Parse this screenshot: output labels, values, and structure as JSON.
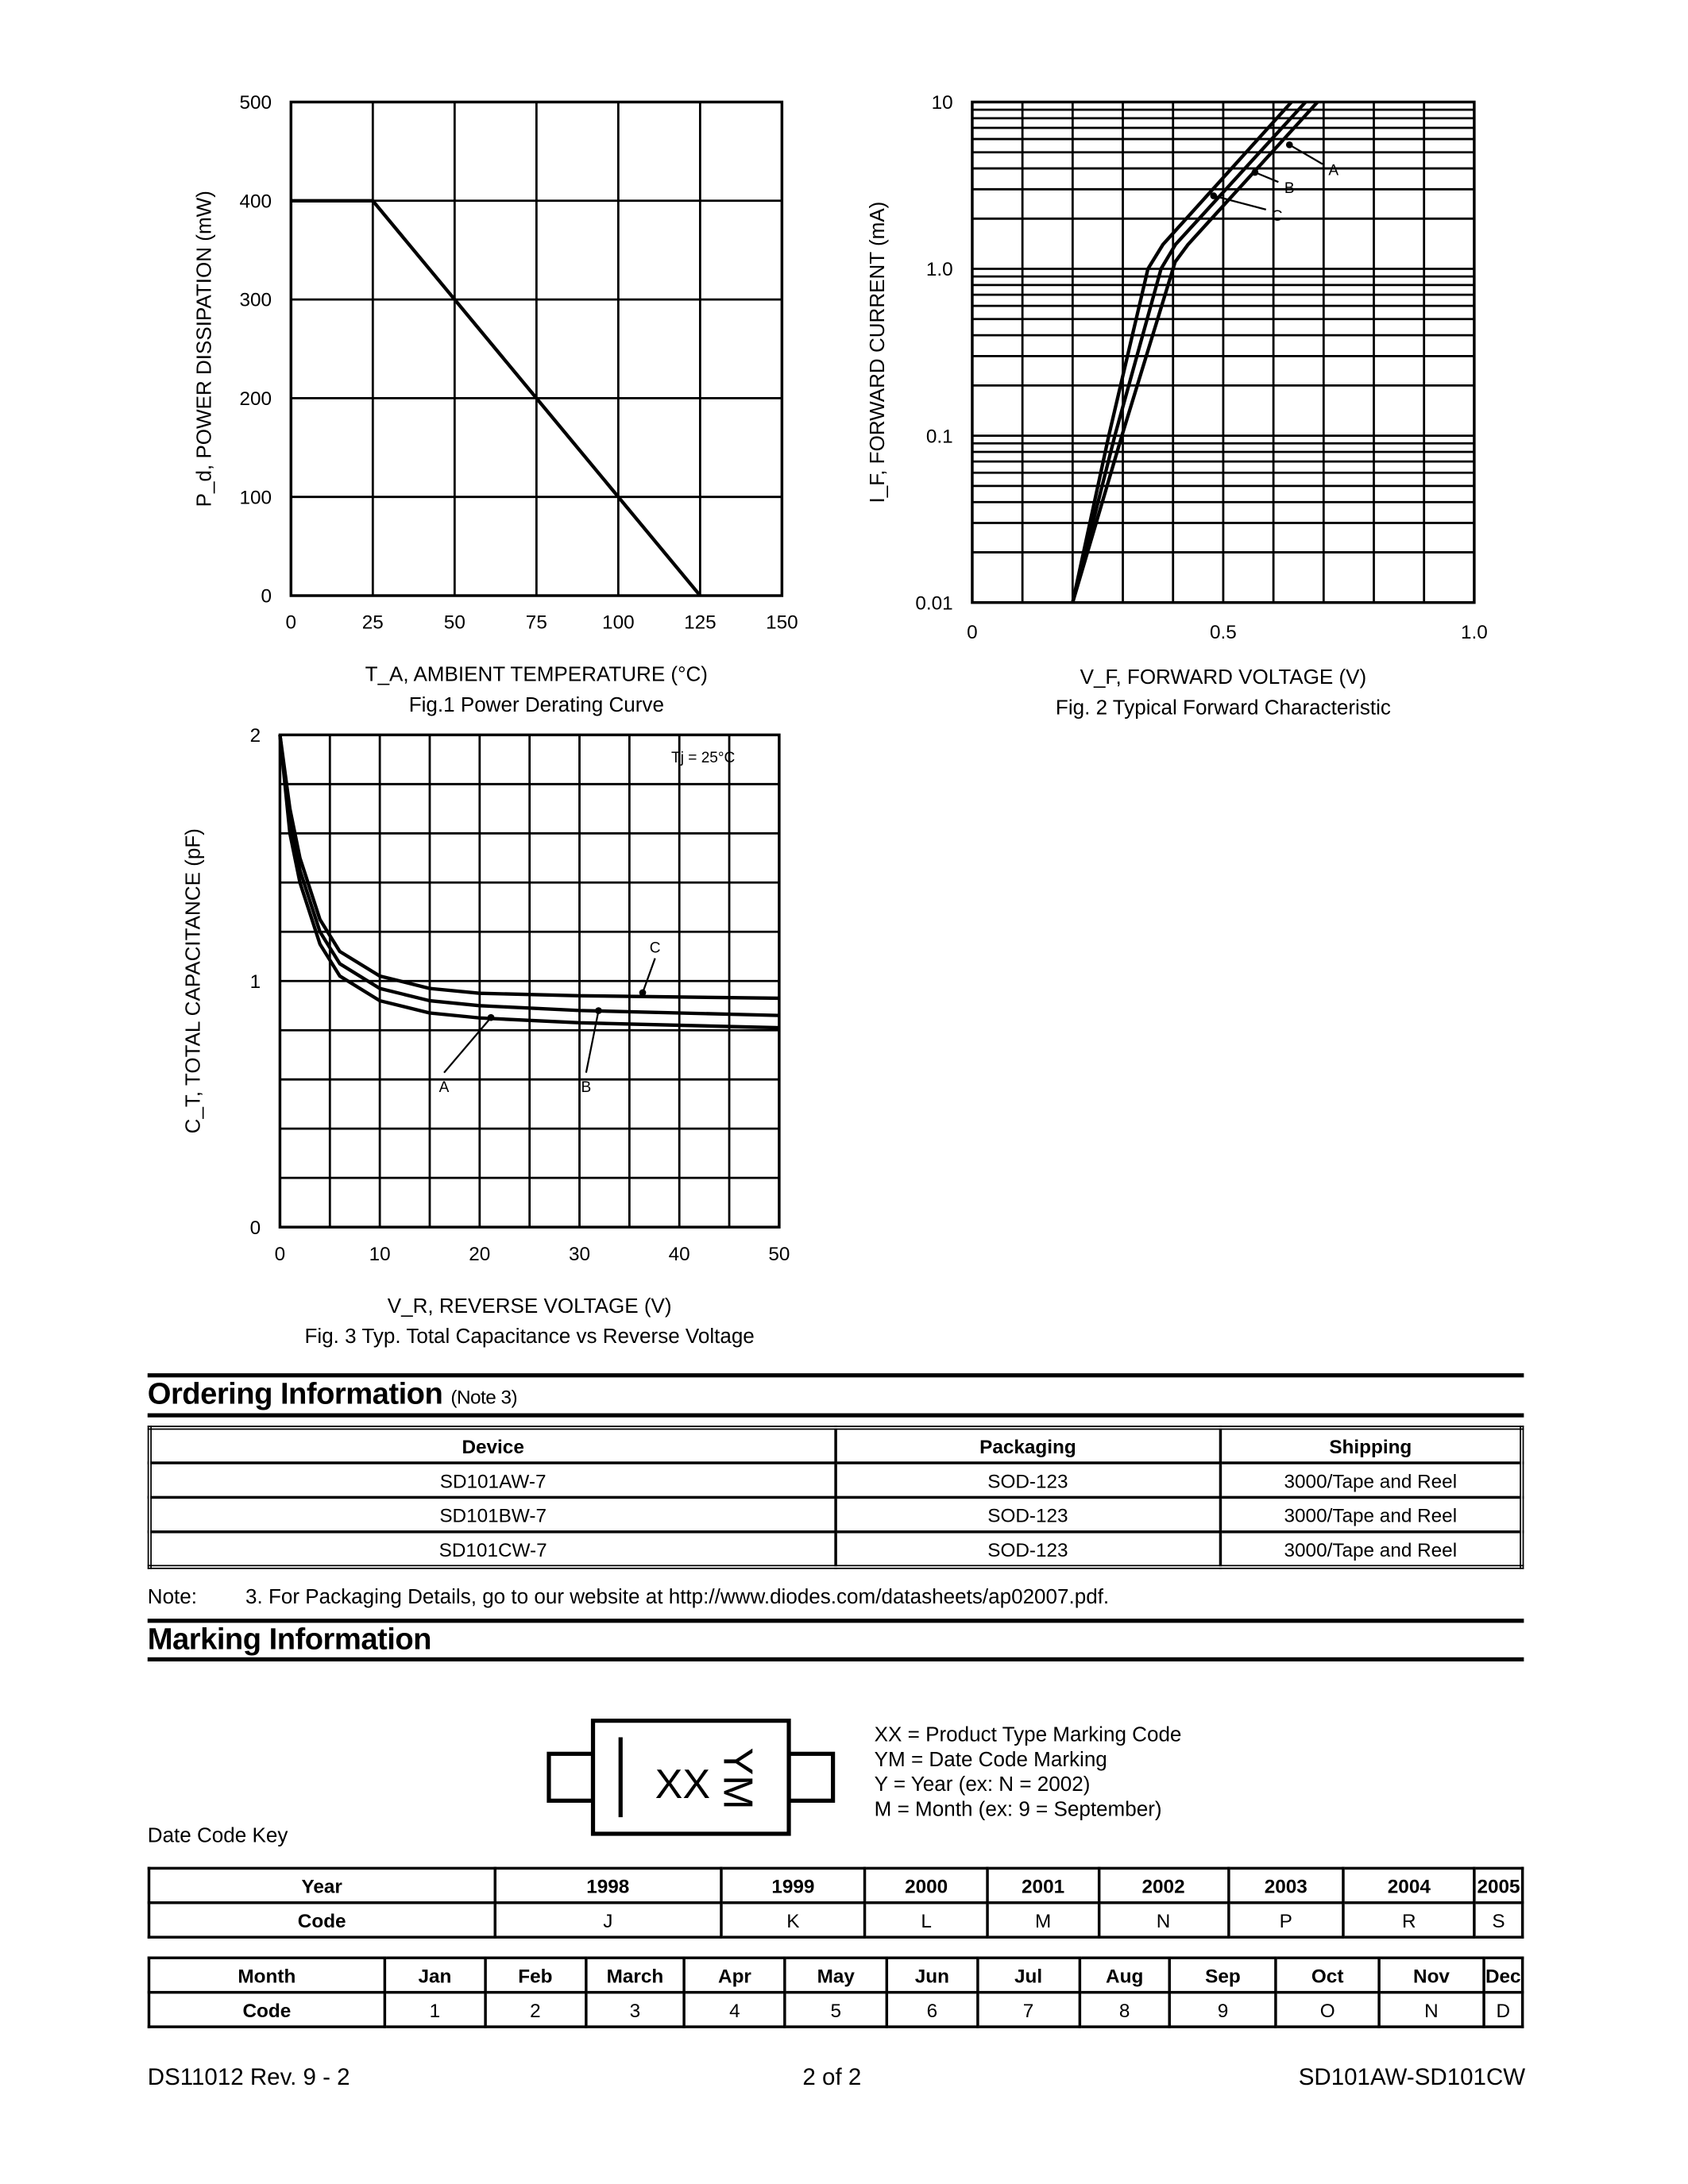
{
  "chart_data": [
    {
      "type": "line",
      "title": "Fig.1  Power Derating Curve",
      "xlabel": "T_A, AMBIENT TEMPERATURE (°C)",
      "ylabel": "P_d, POWER DISSIPATION (mW)",
      "xlim": [
        0,
        150
      ],
      "ylim": [
        0,
        500
      ],
      "xticks": [
        "0",
        "25",
        "50",
        "75",
        "100",
        "125",
        "150"
      ],
      "yticks": [
        "0",
        "100",
        "200",
        "300",
        "400",
        "500"
      ],
      "grid": true,
      "series": [
        {
          "x": [
            0,
            25,
            125
          ],
          "y": [
            400,
            400,
            0
          ]
        }
      ]
    },
    {
      "type": "line",
      "title": "Fig. 2 Typical Forward Characteristic",
      "xlabel": "V_F, FORWARD VOLTAGE (V)",
      "ylabel": "I_F, FORWARD CURRENT (mA)",
      "xlim": [
        0,
        1.0
      ],
      "ylim": [
        0.01,
        10
      ],
      "yscale": "log",
      "xticks": [
        "0",
        "0.5",
        "1.0"
      ],
      "yticks": [
        "0.01",
        "0.1",
        "1.0",
        "10"
      ],
      "grid": true,
      "series": [
        {
          "name": "A",
          "x": [
            0.2,
            0.272,
            0.35,
            0.38,
            0.636
          ],
          "y": [
            0.01,
            0.1,
            1.0,
            1.4,
            10
          ]
        },
        {
          "name": "B",
          "x": [
            0.2,
            0.284,
            0.376,
            0.405,
            0.664
          ],
          "y": [
            0.01,
            0.1,
            1.0,
            1.4,
            10
          ]
        },
        {
          "name": "C",
          "x": [
            0.2,
            0.298,
            0.404,
            0.43,
            0.688
          ],
          "y": [
            0.01,
            0.1,
            1.1,
            1.4,
            10
          ]
        }
      ]
    },
    {
      "type": "line",
      "title": "Fig. 3  Typ. Total Capacitance vs Reverse Voltage",
      "xlabel": "V_R, REVERSE VOLTAGE (V)",
      "ylabel": "C_T, TOTAL CAPACITANCE (pF)",
      "annotation": "Tj = 25°C",
      "xlim": [
        0,
        50
      ],
      "ylim": [
        0,
        2
      ],
      "xticks": [
        "0",
        "10",
        "20",
        "30",
        "40",
        "50"
      ],
      "yticks": [
        "0",
        "1",
        "2"
      ],
      "grid": true,
      "series": [
        {
          "name": "A",
          "x": [
            0,
            1,
            2,
            4,
            6,
            10,
            15,
            20,
            30,
            50
          ],
          "y": [
            2,
            1.6,
            1.4,
            1.15,
            1.02,
            0.92,
            0.87,
            0.85,
            0.83,
            0.81
          ]
        },
        {
          "name": "B",
          "x": [
            0,
            1,
            2,
            4,
            6,
            10,
            15,
            20,
            30,
            50
          ],
          "y": [
            2,
            1.65,
            1.45,
            1.2,
            1.07,
            0.97,
            0.92,
            0.9,
            0.88,
            0.86
          ]
        },
        {
          "name": "C",
          "x": [
            0,
            1,
            2,
            4,
            6,
            10,
            15,
            20,
            30,
            50
          ],
          "y": [
            2,
            1.7,
            1.5,
            1.25,
            1.12,
            1.02,
            0.97,
            0.95,
            0.94,
            0.93
          ]
        }
      ]
    }
  ],
  "ordering": {
    "title": "Ordering Information",
    "note_ref": "(Note 3)",
    "headers": [
      "Device",
      "Packaging",
      "Shipping"
    ],
    "rows": [
      [
        "SD101AW-7",
        "SOD-123",
        "3000/Tape and Reel"
      ],
      [
        "SD101BW-7",
        "SOD-123",
        "3000/Tape and Reel"
      ],
      [
        "SD101CW-7",
        "SOD-123",
        "3000/Tape and Reel"
      ]
    ],
    "note_label": "Note:",
    "note_text": "3. For Packaging Details, go to our website at http://www.diodes.com/datasheets/ap02007.pdf."
  },
  "marking": {
    "title": "Marking Information",
    "pkg_xx": "XX",
    "pkg_ym": "YM",
    "legend": [
      "XX = Product Type Marking Code",
      "YM = Date Code Marking",
      "Y = Year (ex: N = 2002)",
      "M = Month (ex: 9 = September)"
    ],
    "date_code_key": "Date Code Key",
    "year_table": {
      "header": [
        "Year",
        "1998",
        "1999",
        "2000",
        "2001",
        "2002",
        "2003",
        "2004",
        "2005"
      ],
      "codes": [
        "Code",
        "J",
        "K",
        "L",
        "M",
        "N",
        "P",
        "R",
        "S"
      ]
    },
    "month_table": {
      "header": [
        "Month",
        "Jan",
        "Feb",
        "March",
        "Apr",
        "May",
        "Jun",
        "Jul",
        "Aug",
        "Sep",
        "Oct",
        "Nov",
        "Dec"
      ],
      "codes": [
        "Code",
        "1",
        "2",
        "3",
        "4",
        "5",
        "6",
        "7",
        "8",
        "9",
        "O",
        "N",
        "D"
      ]
    }
  },
  "footer": {
    "left": "DS11012 Rev. 9 - 2",
    "center": "2 of 2",
    "right": "SD101AW-SD101CW"
  }
}
